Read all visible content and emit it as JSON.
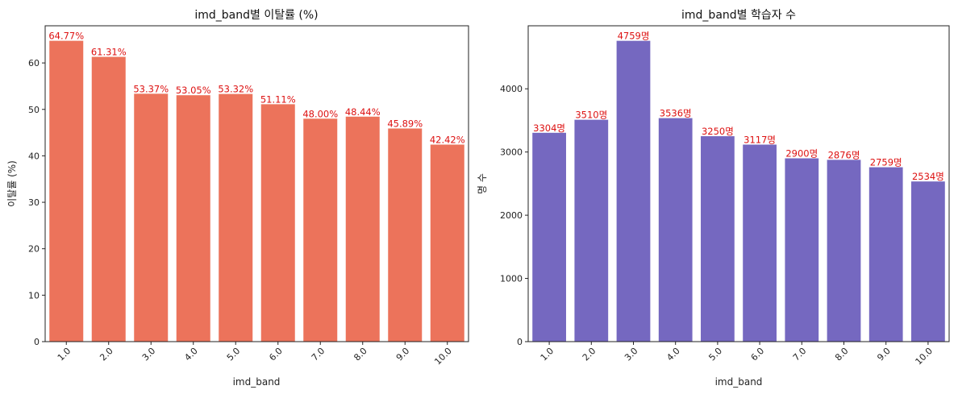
{
  "colors": {
    "bar_left": "#ec735b",
    "bar_right": "#7568c0",
    "data_label": "#dd1111",
    "axis": "#222222"
  },
  "chart_data": [
    {
      "type": "bar",
      "title": "imd_band별 이탈률 (%)",
      "xlabel": "imd_band",
      "ylabel": "이탈률 (%)",
      "categories": [
        "1.0",
        "2.0",
        "3.0",
        "4.0",
        "5.0",
        "6.0",
        "7.0",
        "8.0",
        "9.0",
        "10.0"
      ],
      "values": [
        64.77,
        61.31,
        53.37,
        53.05,
        53.32,
        51.11,
        48.0,
        48.44,
        45.89,
        42.42
      ],
      "data_labels": [
        "64.77%",
        "61.31%",
        "53.37%",
        "53.05%",
        "53.32%",
        "51.11%",
        "48.00%",
        "48.44%",
        "45.89%",
        "42.42%"
      ],
      "ylim": [
        0,
        68
      ],
      "yticks": [
        0,
        10,
        20,
        30,
        40,
        50,
        60
      ],
      "grid": false
    },
    {
      "type": "bar",
      "title": "imd_band별 학습자 수",
      "xlabel": "imd_band",
      "ylabel": "명 수",
      "categories": [
        "1.0",
        "2.0",
        "3.0",
        "4.0",
        "5.0",
        "6.0",
        "7.0",
        "8.0",
        "9.0",
        "10.0"
      ],
      "values": [
        3304,
        3510,
        4759,
        3536,
        3250,
        3117,
        2900,
        2876,
        2759,
        2534
      ],
      "data_labels": [
        "3304명",
        "3510명",
        "4759명",
        "3536명",
        "3250명",
        "3117명",
        "2900명",
        "2876명",
        "2759명",
        "2534명"
      ],
      "ylim": [
        0,
        4997
      ],
      "yticks": [
        0,
        1000,
        2000,
        3000,
        4000
      ],
      "grid": false
    }
  ]
}
